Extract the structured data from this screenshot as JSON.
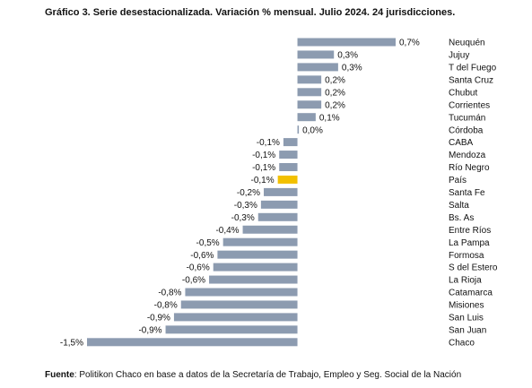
{
  "chart_data": {
    "type": "hbar",
    "title": "Gráfico 3. Serie desestacionalizada. Variación % mensual. Julio 2024. 24 jurisdicciones.",
    "categories": [
      "Neuquén",
      "Jujuy",
      "T del Fuego",
      "Santa Cruz",
      "Chubut",
      "Corrientes",
      "Tucumán",
      "Córdoba",
      "CABA",
      "Mendoza",
      "Río Negro",
      "País",
      "Santa Fe",
      "Salta",
      "Bs. As",
      "Entre Ríos",
      "La Pampa",
      "Formosa",
      "S del Estero",
      "La Rioja",
      "Catamarca",
      "Misiones",
      "San Luis",
      "San Juan",
      "Chaco"
    ],
    "values": [
      0.7,
      0.26,
      0.29,
      0.17,
      0.17,
      0.17,
      0.13,
      0.01,
      -0.1,
      -0.13,
      -0.13,
      -0.14,
      -0.24,
      -0.26,
      -0.28,
      -0.39,
      -0.53,
      -0.57,
      -0.6,
      -0.63,
      -0.8,
      -0.83,
      -0.88,
      -0.94,
      -1.5
    ],
    "value_labels": [
      "0,7%",
      "0,3%",
      "0,3%",
      "0,2%",
      "0,2%",
      "0,2%",
      "0,1%",
      "0,0%",
      "-0,1%",
      "-0,1%",
      "-0,1%",
      "-0,1%",
      "-0,2%",
      "-0,3%",
      "-0,3%",
      "-0,4%",
      "-0,5%",
      "-0,6%",
      "-0,6%",
      "-0,6%",
      "-0,8%",
      "-0,8%",
      "-0,9%",
      "-0,9%",
      "-1,5%"
    ],
    "colors": [
      "#8c9bb0",
      "#8c9bb0",
      "#8c9bb0",
      "#8c9bb0",
      "#8c9bb0",
      "#8c9bb0",
      "#8c9bb0",
      "#8c9bb0",
      "#8c9bb0",
      "#8c9bb0",
      "#8c9bb0",
      "#f2c000",
      "#8c9bb0",
      "#8c9bb0",
      "#8c9bb0",
      "#8c9bb0",
      "#8c9bb0",
      "#8c9bb0",
      "#8c9bb0",
      "#8c9bb0",
      "#8c9bb0",
      "#8c9bb0",
      "#8c9bb0",
      "#8c9bb0",
      "#8c9bb0"
    ],
    "xlim": [
      -1.5,
      0.7
    ],
    "source_label": "Fuente",
    "source": ": Politikon Chaco en base a datos de la Secretaría de Trabajo, Empleo y Seg. Social de la Nación"
  }
}
